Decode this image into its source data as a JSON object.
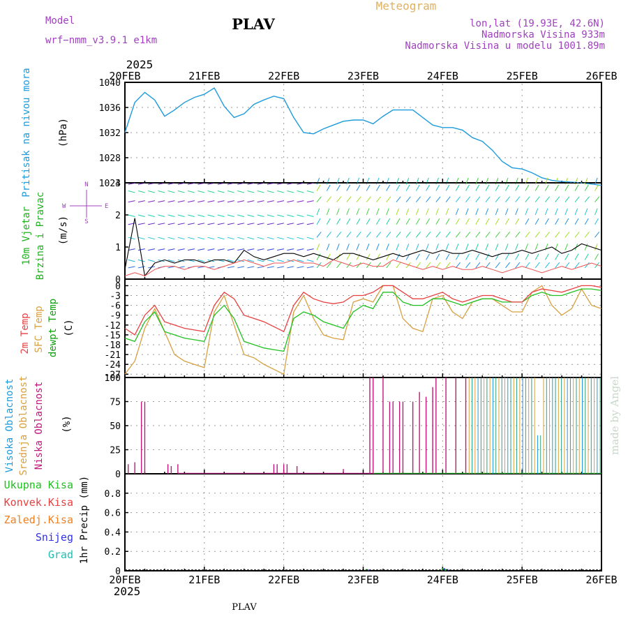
{
  "header": {
    "model_label": "Model",
    "model_name": "wrf−nmm_v3.9.1 e1km",
    "station": "PLAV",
    "product": "Meteogram",
    "lonlat": "lon,lat (19.93E, 42.6N)",
    "elevation": "Nadmorska Visina 933m",
    "model_elevation": "Nadmorska Visina u modelu 1001.89m",
    "year_top": "2025",
    "year_bottom": "2025",
    "footer_station": "PLAV",
    "credit": "made by Angel",
    "compass": [
      "W",
      "E",
      "N",
      "S"
    ],
    "colors": {
      "header_purple": "#a040c0",
      "product_gold": "#e0b060",
      "pressure": "#1e9bdc",
      "temp_2m": "#e84040",
      "temp_sfc": "#d8a040",
      "dewpoint": "#20c020",
      "cloud_high": "#1e9bdc",
      "cloud_mid": "#d8a040",
      "cloud_low": "#c0187a",
      "precip_total": "#20c020",
      "precip_conv": "#e84040",
      "precip_frozen": "#f08020",
      "snow": "#3030e0",
      "hail": "#20c0b0"
    }
  },
  "chart_data": [
    {
      "type": "line",
      "panel": "pressure",
      "ylabel_lines": [
        "Pritisak na nivou mora",
        "(hPa)"
      ],
      "x_ticks": [
        "20FEB",
        "21FEB",
        "22FEB",
        "23FEB",
        "24FEB",
        "25FEB",
        "26FEB"
      ],
      "ylim": [
        1024,
        1040
      ],
      "yticks": [
        1024,
        1028,
        1032,
        1036,
        1040
      ],
      "x_hours": [
        0,
        3,
        6,
        9,
        12,
        15,
        18,
        21,
        24,
        27,
        30,
        33,
        36,
        39,
        42,
        45,
        48,
        51,
        54,
        57,
        60,
        63,
        66,
        69,
        72,
        75,
        78,
        81,
        84,
        87,
        90,
        93,
        96,
        99,
        102,
        105,
        108,
        111,
        114,
        117,
        120,
        123,
        126,
        129,
        132,
        135,
        138,
        141,
        144
      ],
      "series": [
        {
          "values": [
            1032.0,
            1036.8,
            1038.4,
            1037.2,
            1034.6,
            1035.6,
            1036.8,
            1037.6,
            1038.1,
            1039.1,
            1036.2,
            1034.4,
            1035.0,
            1036.5,
            1037.2,
            1037.8,
            1037.4,
            1034.4,
            1032.0,
            1031.8,
            1032.6,
            1033.2,
            1033.8,
            1034.0,
            1034.0,
            1033.4,
            1034.6,
            1035.6,
            1035.6,
            1035.6,
            1034.4,
            1033.2,
            1032.8,
            1032.8,
            1032.4,
            1031.2,
            1030.6,
            1029.2,
            1027.4,
            1026.4,
            1026.2,
            1025.6,
            1024.8,
            1024.4,
            1024.2,
            1024.1,
            1024.0,
            1023.8,
            1023.6
          ]
        }
      ]
    },
    {
      "type": "line",
      "panel": "wind",
      "ylabel_lines": [
        "10m Vjetar",
        "Brzina i Pravac",
        "(m/s)"
      ],
      "ylim": [
        0,
        3
      ],
      "yticks": [
        0,
        1,
        2,
        3
      ],
      "note": "speed lines plus wind direction barb rows",
      "x_hours": [
        0,
        3,
        6,
        9,
        12,
        15,
        18,
        21,
        24,
        27,
        30,
        33,
        36,
        39,
        42,
        45,
        48,
        51,
        54,
        57,
        60,
        63,
        66,
        69,
        72,
        75,
        78,
        81,
        84,
        87,
        90,
        93,
        96,
        99,
        102,
        105,
        108,
        111,
        114,
        117,
        120,
        123,
        126,
        129,
        132,
        135,
        138,
        141,
        144
      ],
      "series": [
        {
          "values": [
            0.3,
            1.9,
            0.1,
            0.5,
            0.6,
            0.5,
            0.6,
            0.6,
            0.5,
            0.6,
            0.6,
            0.5,
            0.9,
            0.7,
            0.6,
            0.7,
            0.8,
            0.8,
            0.7,
            0.8,
            0.7,
            0.6,
            0.8,
            0.8,
            0.7,
            0.6,
            0.7,
            0.8,
            0.7,
            0.8,
            0.9,
            0.8,
            0.9,
            0.8,
            0.8,
            0.9,
            0.8,
            0.7,
            0.8,
            0.8,
            0.9,
            0.8,
            0.9,
            1.0,
            0.8,
            0.9,
            1.1,
            1.0,
            0.9
          ]
        },
        {
          "values": [
            0.1,
            0.2,
            0.1,
            0.3,
            0.4,
            0.4,
            0.3,
            0.4,
            0.4,
            0.3,
            0.4,
            0.5,
            0.6,
            0.5,
            0.4,
            0.5,
            0.5,
            0.6,
            0.5,
            0.5,
            0.4,
            0.6,
            0.5,
            0.4,
            0.5,
            0.4,
            0.4,
            0.6,
            0.5,
            0.4,
            0.3,
            0.4,
            0.3,
            0.4,
            0.3,
            0.3,
            0.4,
            0.3,
            0.2,
            0.3,
            0.4,
            0.3,
            0.2,
            0.3,
            0.4,
            0.3,
            0.4,
            0.5,
            0.4
          ]
        }
      ]
    },
    {
      "type": "line",
      "panel": "temperature",
      "ylabel_lines": [
        "2m Temp",
        "SFC Temp",
        "dewpt Temp",
        "(C)"
      ],
      "ylim": [
        -28,
        2
      ],
      "yticks": [
        -27,
        -24,
        -21,
        -18,
        -15,
        -12,
        -9,
        -6,
        -3,
        0
      ],
      "x_hours": [
        0,
        3,
        6,
        9,
        12,
        15,
        18,
        21,
        24,
        27,
        30,
        33,
        36,
        39,
        42,
        45,
        48,
        51,
        54,
        57,
        60,
        63,
        66,
        69,
        72,
        75,
        78,
        81,
        84,
        87,
        90,
        93,
        96,
        99,
        102,
        105,
        108,
        111,
        114,
        117,
        120,
        123,
        126,
        129,
        132,
        135,
        138,
        141,
        144
      ],
      "series": [
        {
          "values": [
            -13,
            -15,
            -9,
            -6,
            -11,
            -12,
            -13,
            -13.5,
            -14,
            -6,
            -2,
            -4,
            -9,
            -10,
            -11,
            -12.5,
            -14,
            -6,
            -2,
            -4,
            -5,
            -5.5,
            -5,
            -3,
            -3,
            -2,
            0,
            0,
            -2,
            -4,
            -4,
            -3,
            -2,
            -4,
            -5,
            -4,
            -3,
            -3,
            -4,
            -5,
            -5,
            -2,
            -1,
            -1.5,
            -2,
            -1,
            0,
            0,
            -0.5
          ]
        },
        {
          "values": [
            -27,
            -23,
            -13,
            -7,
            -14,
            -21,
            -23,
            -24,
            -25,
            -8,
            -3,
            -12,
            -21,
            -22,
            -24,
            -25.5,
            -27,
            -8,
            -3,
            -10,
            -15,
            -16,
            -16.5,
            -5,
            -4,
            -5,
            0,
            0,
            -10,
            -13,
            -14,
            -4,
            -3,
            -8,
            -10,
            -5,
            -4,
            -4,
            -6,
            -8,
            -8,
            -2,
            0,
            -6,
            -9,
            -7,
            -1,
            -6,
            -7
          ]
        },
        {
          "values": [
            -16,
            -17,
            -11,
            -8,
            -14,
            -15,
            -16,
            -16.5,
            -17,
            -9,
            -6,
            -10,
            -17,
            -18,
            -19,
            -19.5,
            -20,
            -10,
            -8,
            -9,
            -11,
            -12,
            -13,
            -8,
            -6,
            -7,
            -2,
            -2,
            -5,
            -6,
            -6,
            -4,
            -4,
            -5,
            -6,
            -5,
            -4,
            -4,
            -5,
            -5,
            -5,
            -3,
            -2,
            -3,
            -3,
            -2,
            -1,
            -1,
            -1.5
          ]
        }
      ]
    },
    {
      "type": "bar",
      "panel": "clouds",
      "ylabel_lines": [
        "Visoka Oblacnost",
        "Srednja Oblacnost",
        "Niska Oblacnost",
        "(%)"
      ],
      "ylim": [
        0,
        100
      ],
      "yticks": [
        0,
        25,
        50,
        75,
        100
      ],
      "x_hours": [
        1,
        3,
        5,
        6,
        13,
        14,
        16,
        45,
        46,
        48,
        49,
        52,
        66,
        74,
        75,
        78,
        80,
        81,
        83,
        84,
        87,
        89,
        91,
        93,
        94,
        97,
        100,
        103
      ],
      "series": [
        {
          "values": [
            10,
            12,
            75,
            75,
            10,
            8,
            10,
            10,
            10,
            10,
            10,
            8,
            5,
            100,
            100,
            100,
            75,
            75,
            75,
            75,
            75,
            85,
            80,
            90,
            100,
            100,
            100,
            100
          ]
        },
        {
          "x_range_hours": [
            104,
            144
          ],
          "values": [
            100,
            100,
            100,
            100,
            100,
            100,
            100,
            100
          ]
        },
        {
          "x_range_hours": [
            104,
            144
          ],
          "values": [
            100,
            100,
            100,
            100,
            100,
            100,
            100,
            100
          ]
        }
      ]
    },
    {
      "type": "bar",
      "panel": "precipitation",
      "ylabel_lines": [
        "Ukupna Kisa",
        "Konvek.Kisa",
        "Zaledj.Kisa",
        "Snijeg",
        "Grad",
        "1hr Precip (mm)"
      ],
      "ylim": [
        0,
        1.0
      ],
      "yticks": [
        0,
        0.2,
        0.4,
        0.6,
        0.8
      ],
      "x_hours": [
        73,
        96,
        97
      ],
      "series": [
        {
          "values": [
            0.01,
            0.02,
            0.01
          ]
        },
        {
          "values": [
            0.005,
            0.02,
            0.01
          ]
        }
      ]
    }
  ]
}
